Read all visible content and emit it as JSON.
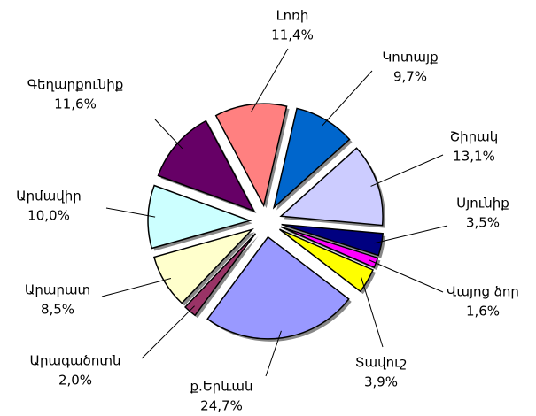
{
  "chart_data": {
    "type": "pie",
    "categories": [
      "Լոռի",
      "Կոտայք",
      "Շիրակ",
      "Սյունիք",
      "Վայոց ձոր",
      "Տավուշ",
      "ք.Երևան",
      "Արագածոտն",
      "Արարատ",
      "Արմավիր",
      "Գեղարքունիք"
    ],
    "values": [
      11.4,
      9.7,
      13.1,
      3.5,
      1.6,
      3.9,
      24.7,
      2.0,
      8.5,
      10.0,
      11.6
    ],
    "value_labels": [
      "11,4%",
      "9,7%",
      "13,1%",
      "3,5%",
      "1,6%",
      "3,9%",
      "24,7%",
      "2,0%",
      "8,5%",
      "10,0%",
      "11,6%"
    ],
    "colors": [
      "#FF8080",
      "#0066CC",
      "#CCCCFF",
      "#000080",
      "#FF00FF",
      "#FFFF00",
      "#9999FF",
      "#993366",
      "#FFFFCC",
      "#CCFFFF",
      "#660066"
    ]
  }
}
